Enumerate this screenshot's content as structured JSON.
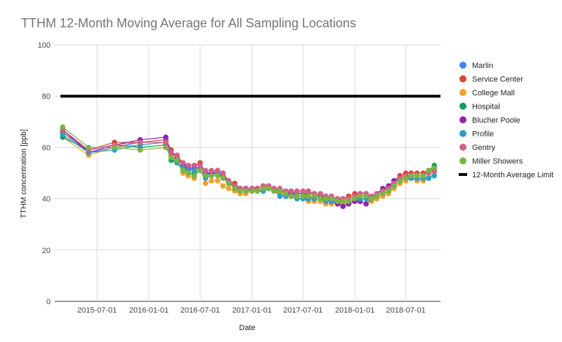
{
  "chart_data": {
    "type": "line",
    "title": "TTHM 12-Month Moving Average for All Sampling Locations",
    "xlabel": "Date",
    "ylabel": "TTHM concentration [ppb]",
    "ylim": [
      0,
      100
    ],
    "xlim": [
      "2015-02-01",
      "2018-11-01"
    ],
    "yticks": [
      0,
      20,
      40,
      60,
      80,
      100
    ],
    "xticks": [
      "2015-07-01",
      "2016-01-01",
      "2016-07-01",
      "2017-01-01",
      "2017-07-01",
      "2018-01-01",
      "2018-07-01"
    ],
    "grid": true,
    "legend_position": "right",
    "x": [
      "2015-03-01",
      "2015-06-01",
      "2015-09-01",
      "2015-12-01",
      "2016-03-01",
      "2016-03-20",
      "2016-04-10",
      "2016-05-01",
      "2016-05-20",
      "2016-06-10",
      "2016-07-01",
      "2016-07-20",
      "2016-08-10",
      "2016-09-01",
      "2016-09-20",
      "2016-10-10",
      "2016-11-01",
      "2016-11-20",
      "2016-12-10",
      "2017-01-01",
      "2017-01-20",
      "2017-02-10",
      "2017-03-01",
      "2017-03-20",
      "2017-04-10",
      "2017-05-01",
      "2017-05-20",
      "2017-06-10",
      "2017-07-01",
      "2017-07-20",
      "2017-08-10",
      "2017-09-01",
      "2017-09-20",
      "2017-10-10",
      "2017-11-01",
      "2017-11-20",
      "2017-12-10",
      "2018-01-01",
      "2018-01-20",
      "2018-02-10",
      "2018-03-01",
      "2018-03-20",
      "2018-04-10",
      "2018-05-01",
      "2018-05-20",
      "2018-06-10",
      "2018-07-01",
      "2018-07-20",
      "2018-08-10",
      "2018-09-01",
      "2018-09-20",
      "2018-10-10"
    ],
    "series": [
      {
        "name": "Marlin",
        "color": "#4285f4",
        "values": [
          66,
          58,
          60,
          62,
          62,
          58,
          57,
          53,
          52,
          51,
          51,
          49,
          50,
          51,
          49,
          46,
          45,
          44,
          44,
          43,
          43,
          43,
          44,
          43,
          42,
          41,
          42,
          41,
          41,
          41,
          40,
          40,
          40,
          39,
          39,
          39,
          39,
          40,
          41,
          41,
          40,
          41,
          42,
          43,
          45,
          47,
          48,
          48,
          47,
          48,
          48,
          49
        ]
      },
      {
        "name": "Service Center",
        "color": "#db4437",
        "values": [
          66,
          59,
          62,
          62,
          63,
          59,
          56,
          54,
          53,
          53,
          54,
          50,
          50,
          50,
          50,
          47,
          46,
          44,
          44,
          44,
          44,
          45,
          45,
          44,
          43,
          43,
          42,
          41,
          41,
          42,
          42,
          41,
          41,
          40,
          40,
          40,
          41,
          42,
          42,
          42,
          41,
          42,
          43,
          45,
          47,
          49,
          50,
          50,
          50,
          50,
          51,
          52
        ]
      },
      {
        "name": "College Mall",
        "color": "#f4a02d",
        "values": [
          64,
          57,
          60,
          61,
          62,
          57,
          55,
          50,
          49,
          48,
          52,
          46,
          47,
          47,
          45,
          44,
          43,
          42,
          42,
          43,
          43,
          44,
          44,
          43,
          42,
          42,
          41,
          40,
          40,
          39,
          39,
          39,
          38,
          38,
          38,
          38,
          38,
          39,
          40,
          40,
          39,
          40,
          41,
          42,
          44,
          46,
          47,
          48,
          47,
          47,
          48,
          50
        ]
      },
      {
        "name": "Hospital",
        "color": "#0f9d58",
        "values": [
          64,
          59,
          61,
          60,
          61,
          55,
          54,
          51,
          50,
          50,
          52,
          50,
          50,
          50,
          49,
          47,
          44,
          44,
          44,
          44,
          44,
          45,
          45,
          44,
          43,
          43,
          43,
          42,
          42,
          41,
          41,
          41,
          40,
          40,
          40,
          39,
          39,
          40,
          41,
          41,
          40,
          41,
          42,
          43,
          45,
          47,
          48,
          49,
          49,
          49,
          51,
          53
        ]
      },
      {
        "name": "Blucher Poole",
        "color": "#8e24aa",
        "values": [
          67,
          58,
          61,
          63,
          64,
          58,
          56,
          53,
          52,
          52,
          52,
          50,
          50,
          50,
          50,
          46,
          44,
          44,
          44,
          43,
          43,
          44,
          44,
          43,
          43,
          42,
          42,
          41,
          41,
          40,
          40,
          40,
          39,
          39,
          38,
          37,
          38,
          39,
          39,
          38,
          40,
          42,
          44,
          45,
          47,
          48,
          49,
          49,
          49,
          49,
          50,
          51
        ]
      },
      {
        "name": "Profile",
        "color": "#2b9fc8",
        "values": [
          65,
          58,
          59,
          61,
          62,
          56,
          54,
          52,
          51,
          51,
          51,
          48,
          49,
          50,
          48,
          46,
          45,
          43,
          43,
          43,
          43,
          43,
          44,
          43,
          41,
          41,
          41,
          40,
          40,
          40,
          40,
          40,
          39,
          39,
          39,
          39,
          39,
          40,
          40,
          40,
          40,
          41,
          42,
          43,
          45,
          47,
          48,
          48,
          48,
          48,
          48,
          49
        ]
      },
      {
        "name": "Gentry",
        "color": "#d45e8c",
        "values": [
          67,
          59,
          61,
          62,
          62,
          58,
          57,
          54,
          53,
          53,
          53,
          51,
          51,
          51,
          50,
          47,
          45,
          44,
          44,
          44,
          44,
          45,
          45,
          44,
          44,
          43,
          43,
          43,
          43,
          43,
          42,
          42,
          41,
          41,
          40,
          40,
          40,
          41,
          42,
          42,
          41,
          42,
          43,
          44,
          46,
          48,
          49,
          49,
          49,
          49,
          50,
          51
        ]
      },
      {
        "name": "Miller Showers",
        "color": "#7cb342",
        "values": [
          68,
          60,
          60,
          59,
          60,
          56,
          55,
          51,
          50,
          49,
          51,
          49,
          49,
          49,
          48,
          46,
          44,
          43,
          43,
          43,
          43,
          44,
          44,
          43,
          43,
          42,
          41,
          41,
          41,
          41,
          41,
          40,
          40,
          40,
          39,
          39,
          39,
          40,
          41,
          41,
          40,
          41,
          42,
          43,
          45,
          47,
          48,
          49,
          49,
          49,
          51,
          52
        ]
      },
      {
        "name": "12-Month Average Limit",
        "color": "#000000",
        "values": [
          80,
          80,
          80,
          80,
          80,
          80,
          80,
          80,
          80,
          80,
          80,
          80,
          80,
          80,
          80,
          80,
          80,
          80,
          80,
          80,
          80,
          80,
          80,
          80,
          80,
          80,
          80,
          80,
          80,
          80,
          80,
          80,
          80,
          80,
          80,
          80,
          80,
          80,
          80,
          80,
          80,
          80,
          80,
          80,
          80,
          80,
          80,
          80,
          80,
          80,
          80,
          80
        ]
      }
    ]
  }
}
